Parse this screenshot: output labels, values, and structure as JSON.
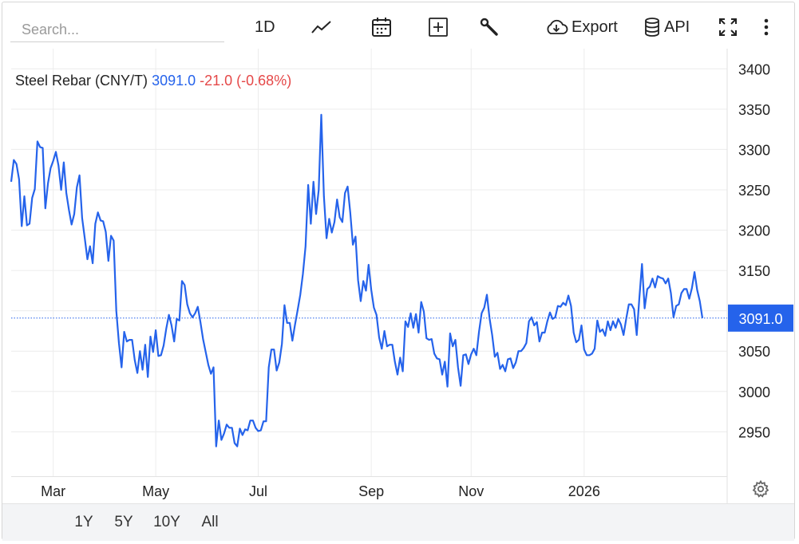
{
  "toolbar": {
    "search_placeholder": "Search...",
    "interval_label": "1D",
    "export_label": "Export",
    "api_label": "API",
    "icons": [
      "line-chart-icon",
      "calendar-icon",
      "compare-plus-icon",
      "wrench-icon",
      "cloud-download-icon",
      "database-icon",
      "fullscreen-icon",
      "more-vertical-icon"
    ]
  },
  "legend": {
    "symbol": "Steel Rebar (CNY/T)",
    "last": "3091.0",
    "change": "-21.0 (-0.68%)"
  },
  "range_buttons": [
    {
      "label": "1Y",
      "active": true
    },
    {
      "label": "5Y",
      "active": false
    },
    {
      "label": "10Y",
      "active": false
    },
    {
      "label": "All",
      "active": false
    }
  ],
  "colors": {
    "line": "#2563eb",
    "negative": "#e54848",
    "grid": "#ececec",
    "axis_text": "#222222"
  },
  "chart_data": {
    "type": "line",
    "title": "Steel Rebar (CNY/T)",
    "xlabel": "",
    "ylabel": "",
    "x_ticks": [
      "Mar",
      "May",
      "Jul",
      "Sep",
      "Nov",
      "2026"
    ],
    "y_ticks": [
      2950,
      3000,
      3050,
      3100,
      3150,
      3200,
      3250,
      3300,
      3350,
      3400
    ],
    "ylim": [
      2895,
      3425
    ],
    "last_value": 3091.0,
    "last_value_label": "3091.0",
    "series": [
      {
        "values": [
          3260,
          3287,
          3282,
          3263,
          3205,
          3242,
          3206,
          3208,
          3240,
          3251,
          3310,
          3303,
          3302,
          3227,
          3258,
          3277,
          3286,
          3297,
          3280,
          3250,
          3284,
          3246,
          3225,
          3207,
          3220,
          3253,
          3268,
          3215,
          3190,
          3164,
          3180,
          3159,
          3208,
          3222,
          3212,
          3211,
          3198,
          3162,
          3193,
          3187,
          3100,
          3060,
          3030,
          3074,
          3062,
          3064,
          3064,
          3039,
          3023,
          3050,
          3027,
          3058,
          3018,
          3068,
          3049,
          3076,
          3044,
          3045,
          3057,
          3078,
          3095,
          3082,
          3062,
          3090,
          3088,
          3137,
          3132,
          3108,
          3097,
          3092,
          3097,
          3105,
          3086,
          3065,
          3049,
          3033,
          3022,
          3030,
          2932,
          2964,
          2940,
          2948,
          2959,
          2955,
          2955,
          2936,
          2932,
          2954,
          2946,
          2953,
          2952,
          2964,
          2964,
          2955,
          2951,
          2952,
          2963,
          2963,
          3030,
          3052,
          3052,
          3026,
          3036,
          3059,
          3107,
          3085,
          3085,
          3063,
          3083,
          3101,
          3120,
          3146,
          3180,
          3256,
          3208,
          3260,
          3220,
          3250,
          3343,
          3242,
          3190,
          3214,
          3197,
          3210,
          3238,
          3216,
          3210,
          3246,
          3254,
          3222,
          3182,
          3192,
          3138,
          3112,
          3137,
          3125,
          3157,
          3126,
          3104,
          3095,
          3067,
          3053,
          3075,
          3056,
          3058,
          3058,
          3037,
          3021,
          3042,
          3025,
          3087,
          3080,
          3097,
          3079,
          3096,
          3073,
          3111,
          3099,
          3066,
          3064,
          3065,
          3047,
          3041,
          3040,
          3021,
          3037,
          3006,
          3072,
          3056,
          3064,
          3030,
          3007,
          3045,
          3046,
          3034,
          3046,
          3053,
          3045,
          3074,
          3097,
          3104,
          3120,
          3091,
          3070,
          3043,
          3048,
          3028,
          3033,
          3025,
          3040,
          3041,
          3029,
          3036,
          3050,
          3050,
          3054,
          3060,
          3087,
          3092,
          3082,
          3086,
          3062,
          3073,
          3073,
          3087,
          3098,
          3090,
          3092,
          3106,
          3105,
          3110,
          3107,
          3119,
          3106,
          3073,
          3061,
          3064,
          3082,
          3052,
          3045,
          3045,
          3047,
          3053,
          3088,
          3074,
          3077,
          3069,
          3087,
          3076,
          3087,
          3079,
          3090,
          3083,
          3070,
          3090,
          3108,
          3108,
          3102,
          3070,
          3116,
          3158,
          3103,
          3127,
          3130,
          3140,
          3129,
          3143,
          3141,
          3140,
          3134,
          3140,
          3122,
          3092,
          3106,
          3108,
          3122,
          3127,
          3127,
          3115,
          3128,
          3148,
          3126,
          3112,
          3091
        ]
      }
    ]
  }
}
